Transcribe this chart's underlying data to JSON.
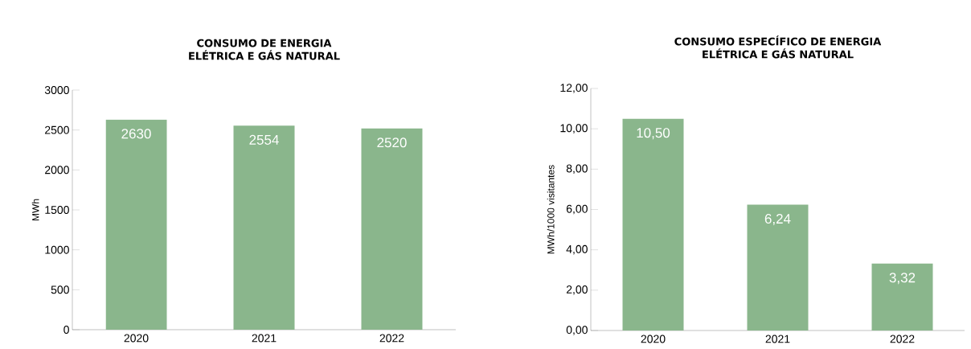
{
  "chart_data": [
    {
      "type": "bar",
      "title": "CONSUMO DE ENERGIA ELÉTRICA E GÁS NATURAL",
      "ylabel": "MWh",
      "categories": [
        "2020",
        "2021",
        "2022"
      ],
      "values": [
        2630,
        2554,
        2520
      ],
      "value_labels": [
        "2630",
        "2554",
        "2520"
      ],
      "color": "#8ab68c",
      "ylim": [
        0,
        3000
      ],
      "yticks": [
        0,
        500,
        1000,
        1500,
        2000,
        2500,
        3000
      ],
      "grid": false
    },
    {
      "type": "bar",
      "title": "CONSUMO ESPECÍFICO DE ENERGIA ELÉTRICA E GÁS NATURAL",
      "ylabel": "MWh/1000 visitantes",
      "categories": [
        "2020",
        "2021",
        "2022"
      ],
      "values": [
        10.5,
        6.24,
        3.32
      ],
      "value_labels": [
        "10,50",
        "6,24",
        "3,32"
      ],
      "color": "#8ab68c",
      "ylim": [
        0,
        12
      ],
      "yticks": [
        {
          "value": 0,
          "label": "0,00"
        },
        {
          "value": 2,
          "label": "2,00"
        },
        {
          "value": 4,
          "label": "4,00"
        },
        {
          "value": 6,
          "label": "6,00"
        },
        {
          "value": 8,
          "label": "8,00"
        },
        {
          "value": 10,
          "label": "10,00"
        },
        {
          "value": 12,
          "label": "12,00"
        }
      ],
      "grid": false
    }
  ]
}
